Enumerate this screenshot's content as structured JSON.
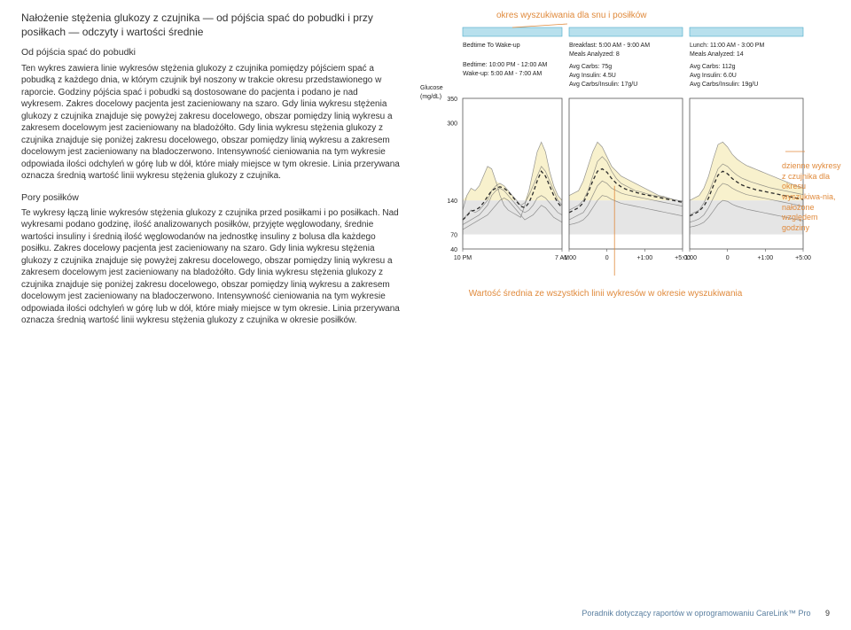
{
  "left": {
    "title": "Nałożenie stężenia glukozy z czujnika — od pójścia spać do pobudki i przy posiłkach — odczyty i wartości średnie",
    "sub1": "Od pójścia spać do pobudki",
    "p1": "Ten wykres zawiera linie wykresów stężenia glukozy z czujnika pomiędzy pójściem spać a pobudką z każdego dnia, w którym czujnik był noszony w trakcie okresu przedstawionego w raporcie. Godziny pójścia spać i pobudki są dostosowane do pacjenta i podano je nad wykresem. Zakres docelowy pacjenta jest zacieniowany na szaro. Gdy linia wykresu stężenia glukozy z czujnika znajduje się powyżej zakresu docelowego, obszar pomiędzy linią wykresu a zakresem docelowym jest zacieniowany na bladożółto. Gdy linia wykresu stężenia glukozy z czujnika znajduje się poniżej zakresu docelowego, obszar pomiędzy linią wykresu a zakresem docelowym jest zacieniowany na bladoczerwono.  Intensywność cieniowania na tym wykresie odpowiada ilości odchyleń w górę lub w dół, które miały miejsce w tym okresie. Linia przerywana oznacza średnią wartość linii wykresu stężenia glukozy z czujnika.",
    "sub2": "Pory posiłków",
    "p2": "Te wykresy łączą linie wykresów stężenia glukozy z czujnika przed posiłkami i po posiłkach. Nad wykresami podano godzinę, ilość analizowanych posiłków, przyjęte węglowodany, średnie wartości insuliny i średnią ilość węglowodanów na jednostkę insuliny z bolusa dla każdego posiłku. Zakres docelowy pacjenta jest zacieniowany na szaro. Gdy linia wykresu stężenia glukozy z czujnika znajduje się powyżej zakresu docelowego, obszar pomiędzy linią wykresu a zakresem docelowym jest zacieniowany na bladożółto. Gdy linia wykresu stężenia glukozy z czujnika znajduje się poniżej zakresu docelowego, obszar pomiędzy linią wykresu a zakresem docelowym jest zacieniowany na bladoczerwono.  Intensywność cieniowania na tym wykresie odpowiada ilości odchyleń w górę lub w dół, które miały miejsce w tym okresie. Linia przerywana oznacza średnią wartość linii wykresu stężenia glukozy z czujnika w okresie posiłków."
  },
  "right": {
    "topTitle": "okres wyszukiwania dla snu i posiłków",
    "sideNote": "dzienne wykresy z czujnika dla okresu wyszukiwa-nia, nałożone względem godziny",
    "caption": "Wartość średnia ze wszystkich linii wykresów w okresie wyszukiwania"
  },
  "chart": {
    "header": {
      "col1": {
        "line1": "Bedtime To Wake-up",
        "line2": "Bedtime: 10:00 PM - 12:00 AM",
        "line3": "Wake-up: 5:00 AM - 7:00 AM"
      },
      "col2": {
        "line1": "Breakfast: 5:00 AM - 9:00 AM",
        "line2": "Meals Analyzed: 8",
        "line3": "Avg Carbs: 75g",
        "line4": "Avg Insulin: 4.5U",
        "line5": "Avg Carbs/Insulin: 17g/U"
      },
      "col3": {
        "line1": "Lunch: 11:00 AM - 3:00 PM",
        "line2": "Meals Analyzed: 14",
        "line3": "Avg Carbs: 112g",
        "line4": "Avg Insulin: 6.0U",
        "line5": "Avg Carbs/Insulin: 19g/U"
      }
    },
    "yaxis": {
      "label": "Glucose (mg/dL)",
      "ticks": [
        40,
        70,
        140,
        300,
        350
      ],
      "min": 40,
      "max": 350
    },
    "target": {
      "low": 70,
      "high": 140
    },
    "panel1": {
      "xticks": [
        "10 PM",
        "7 AM"
      ]
    },
    "panel2": {
      "xticks": [
        "-1:00",
        "0",
        "+1:00",
        "+5:00"
      ]
    },
    "panel3": {
      "xticks": [
        "-1:00",
        "0",
        "+1:00",
        "+5:00"
      ]
    },
    "colors": {
      "targetBand": "#e5e5e5",
      "highShade": "#f7f0c8",
      "lowShade": "#f4d5cf",
      "line": "#6a6a6a",
      "dash": "#2a2a2a",
      "border": "#555555",
      "text": "#222222",
      "topBarFill": "#b8e0ed",
      "topBarStroke": "#4aa8c8"
    },
    "lines": {
      "p1": [
        [
          120,
          150,
          165,
          160,
          170,
          190,
          210,
          205,
          180,
          150,
          130,
          120,
          115,
          110,
          105,
          130,
          160,
          200,
          240,
          260,
          240,
          200,
          170,
          150,
          140
        ],
        [
          100,
          110,
          120,
          115,
          120,
          130,
          140,
          160,
          170,
          175,
          170,
          160,
          150,
          140,
          130,
          135,
          150,
          170,
          190,
          210,
          200,
          180,
          160,
          140,
          130
        ],
        [
          90,
          95,
          100,
          105,
          110,
          120,
          130,
          150,
          160,
          165,
          160,
          150,
          140,
          130,
          120,
          115,
          120,
          130,
          145,
          150,
          145,
          135,
          125,
          115,
          110
        ],
        [
          80,
          85,
          90,
          95,
          100,
          105,
          110,
          120,
          130,
          140,
          145,
          140,
          130,
          120,
          110,
          100,
          105,
          110,
          120,
          130,
          125,
          115,
          105,
          100,
          95
        ]
      ],
      "p1dash": [
        100,
        108,
        118,
        120,
        125,
        135,
        148,
        160,
        165,
        168,
        165,
        158,
        148,
        138,
        128,
        125,
        135,
        155,
        180,
        200,
        190,
        170,
        150,
        135,
        125
      ],
      "p2": [
        [
          150,
          155,
          160,
          180,
          210,
          240,
          260,
          250,
          230,
          210,
          200,
          190,
          185,
          180,
          175,
          170,
          165,
          160,
          155,
          150,
          148,
          145,
          142,
          140,
          138
        ],
        [
          120,
          125,
          130,
          140,
          160,
          190,
          220,
          230,
          220,
          200,
          185,
          175,
          170,
          165,
          160,
          158,
          155,
          152,
          150,
          148,
          146,
          144,
          142,
          140,
          138
        ],
        [
          100,
          105,
          110,
          115,
          130,
          150,
          170,
          180,
          175,
          165,
          160,
          155,
          152,
          150,
          148,
          146,
          144,
          142,
          140,
          138,
          136,
          134,
          132,
          130,
          128
        ],
        [
          90,
          92,
          95,
          100,
          110,
          125,
          140,
          150,
          148,
          142,
          138,
          134,
          132,
          130,
          128,
          126,
          124,
          122,
          120,
          118,
          116,
          114,
          112,
          110,
          108
        ]
      ],
      "p2dash": [
        115,
        120,
        125,
        135,
        155,
        180,
        200,
        205,
        198,
        185,
        175,
        168,
        163,
        160,
        157,
        154,
        152,
        150,
        148,
        146,
        144,
        142,
        140,
        138,
        136
      ],
      "p3": [
        [
          140,
          145,
          150,
          165,
          190,
          225,
          255,
          260,
          250,
          235,
          225,
          218,
          212,
          208,
          204,
          200,
          196,
          192,
          188,
          184,
          180,
          176,
          172,
          168,
          165
        ],
        [
          110,
          115,
          120,
          135,
          155,
          180,
          205,
          215,
          210,
          200,
          192,
          186,
          182,
          178,
          175,
          172,
          169,
          166,
          164,
          162,
          160,
          158,
          156,
          154,
          152
        ],
        [
          95,
          98,
          102,
          110,
          125,
          145,
          165,
          175,
          172,
          165,
          160,
          156,
          152,
          150,
          148,
          146,
          144,
          142,
          140,
          138,
          136,
          134,
          132,
          130,
          128
        ],
        [
          85,
          87,
          90,
          95,
          105,
          118,
          132,
          140,
          138,
          132,
          128,
          125,
          122,
          120,
          118,
          116,
          114,
          112,
          110,
          108,
          106,
          104,
          102,
          100,
          98
        ]
      ],
      "p3dash": [
        108,
        112,
        118,
        128,
        145,
        170,
        192,
        200,
        195,
        185,
        178,
        172,
        168,
        165,
        162,
        160,
        158,
        156,
        154,
        152,
        150,
        148,
        146,
        144,
        142
      ]
    }
  },
  "footer": {
    "text": "Poradnik dotyczący raportów w oprogramowaniu CareLink™ Pro",
    "page": "9"
  }
}
